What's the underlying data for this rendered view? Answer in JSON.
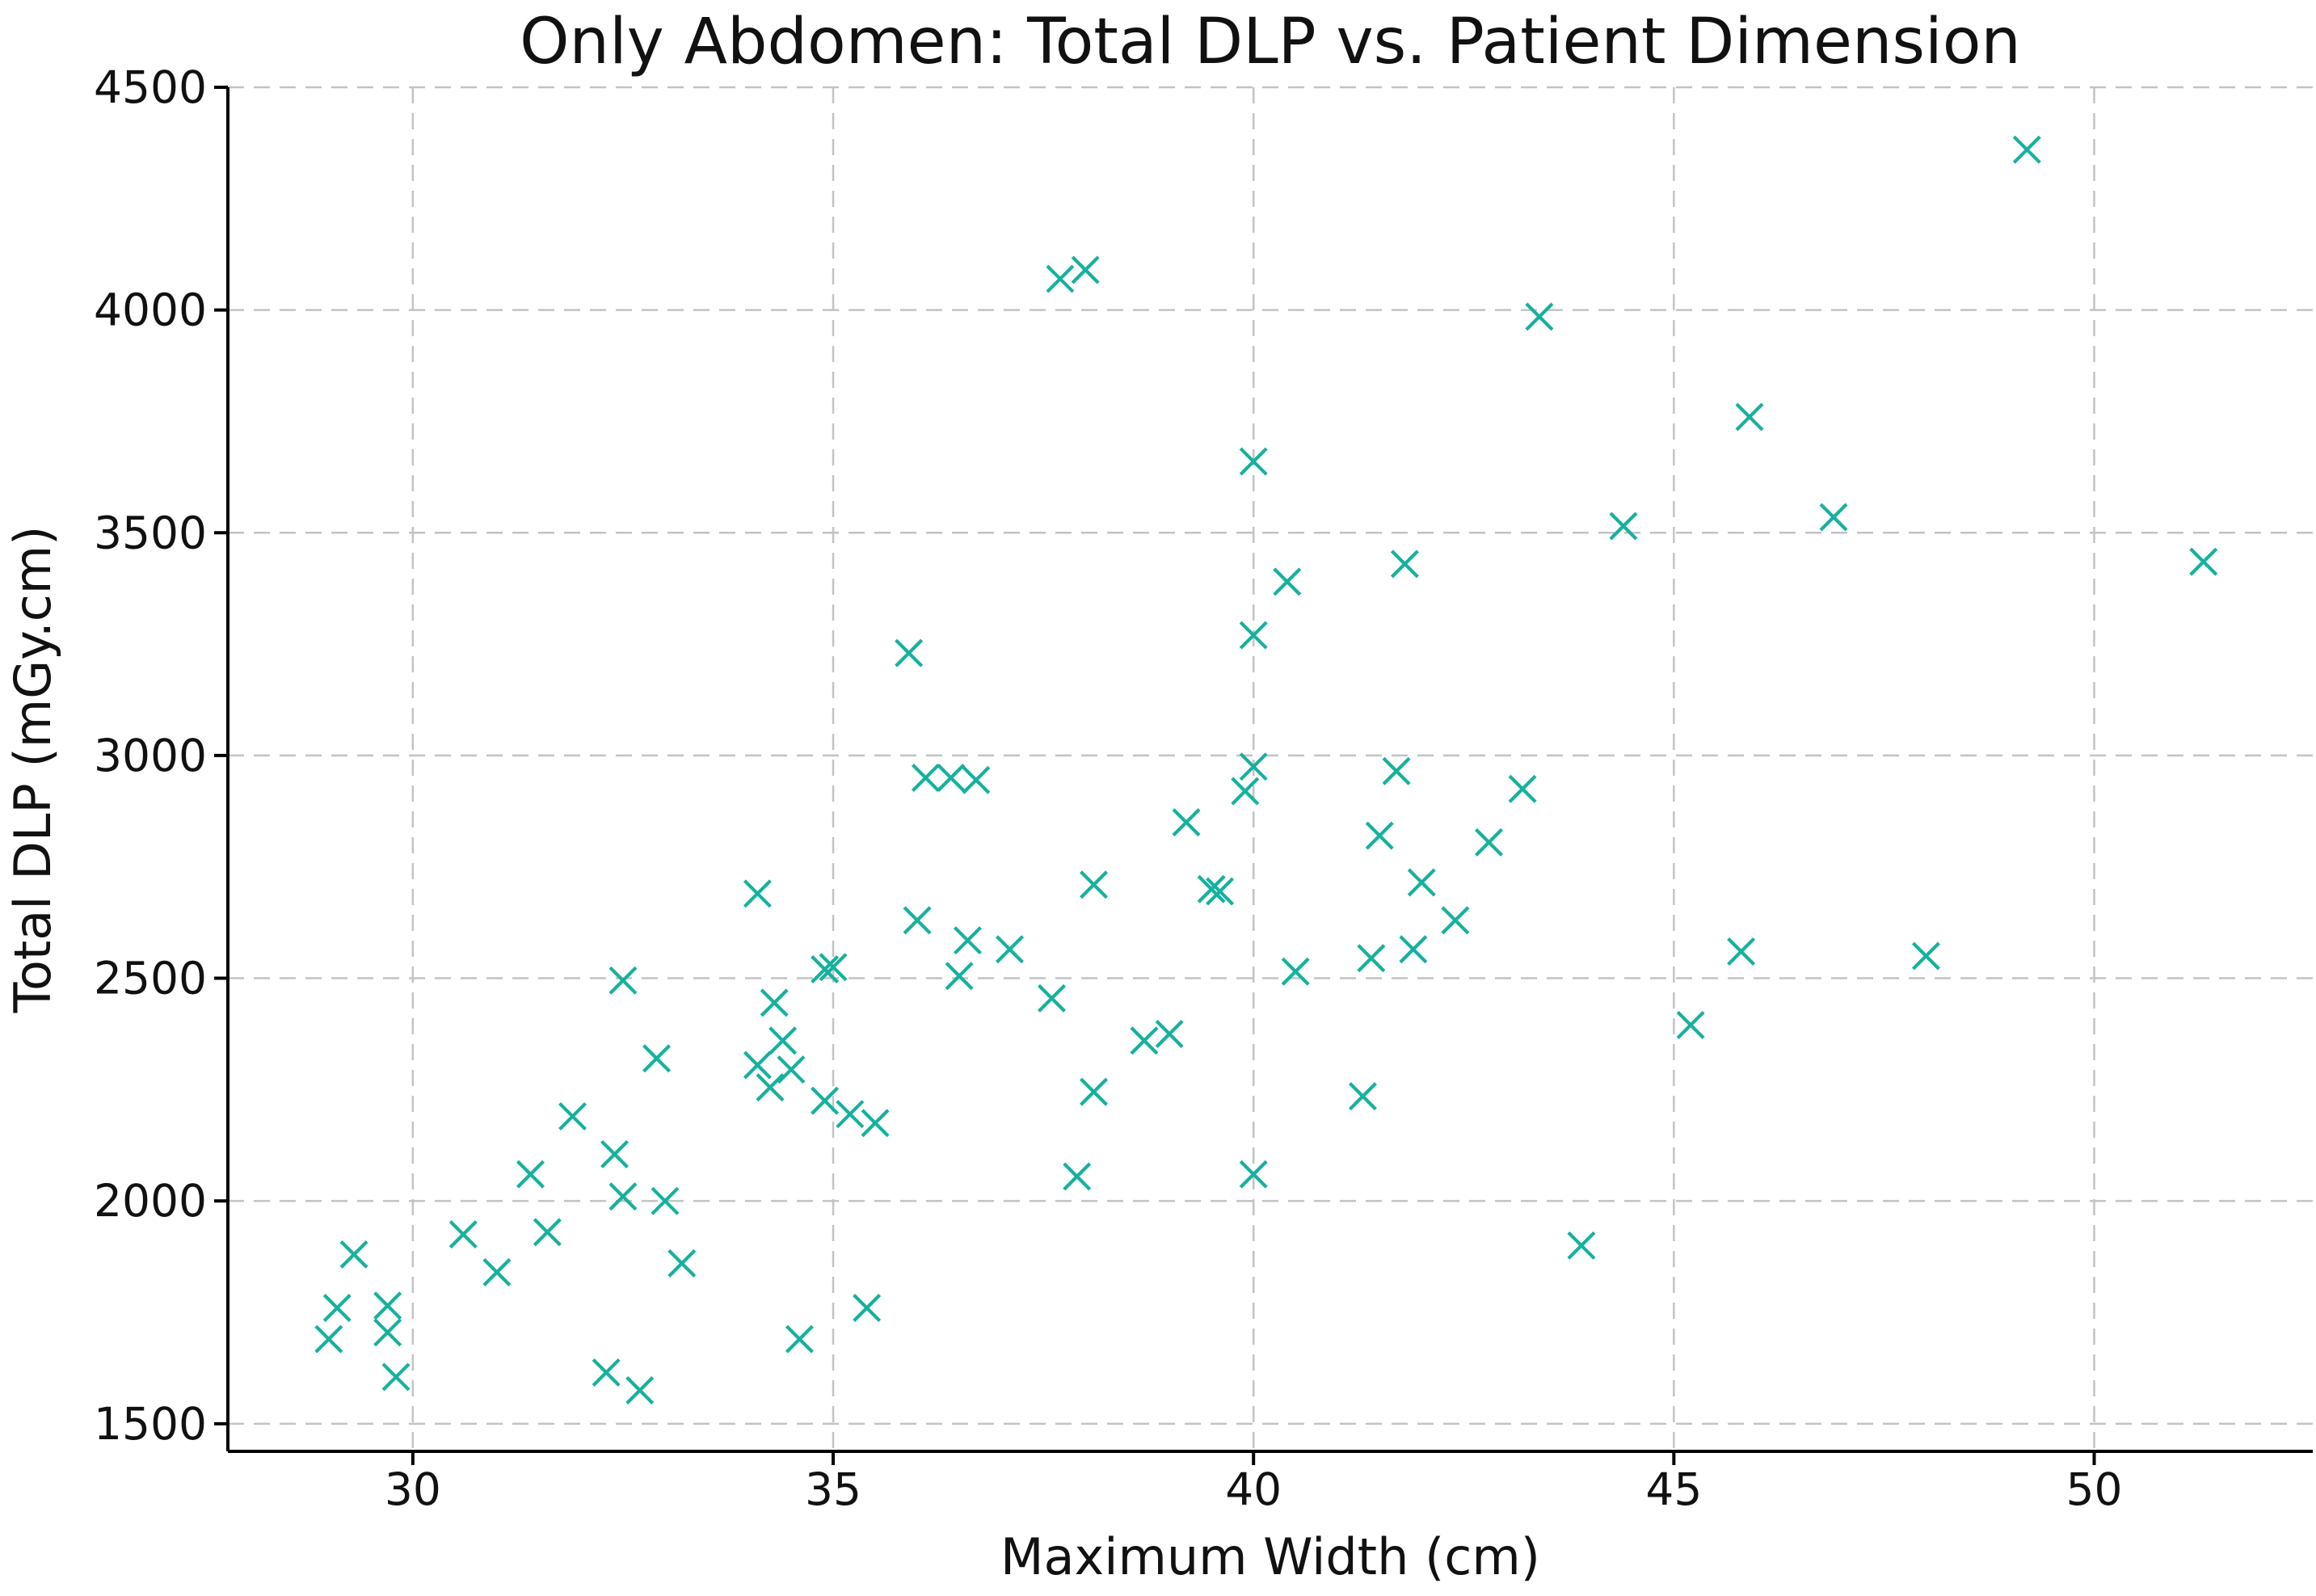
{
  "figure": {
    "title": "Only Abdomen: Total DLP vs. Patient Dimension",
    "xlabel": "Maximum Width (cm)",
    "ylabel": "Total DLP (mGy.cm)"
  },
  "chart_data": {
    "type": "scatter",
    "title": "Only Abdomen: Total DLP vs. Patient Dimension",
    "xlabel": "Maximum Width (cm)",
    "ylabel": "Total DLP (mGy.cm)",
    "marker": "x",
    "marker_color": "#16b19e",
    "grid": true,
    "grid_style": "dashed",
    "grid_color": "#c3c3c3",
    "spine_color": "#000000",
    "legend_position": "none",
    "xlim": [
      27.8,
      52.6
    ],
    "ylim": [
      1438,
      4500
    ],
    "xticks": [
      30,
      35,
      40,
      45,
      50
    ],
    "yticks": [
      1500,
      2000,
      2500,
      3000,
      3500,
      4000,
      4500
    ],
    "points": [
      [
        35.9,
        3230
      ],
      [
        37.7,
        4070
      ],
      [
        38.0,
        4090
      ],
      [
        43.4,
        3985
      ],
      [
        40.0,
        3660
      ],
      [
        44.4,
        3515
      ],
      [
        41.8,
        3430
      ],
      [
        40.4,
        3390
      ],
      [
        40.0,
        3270
      ],
      [
        41.7,
        2965
      ],
      [
        49.2,
        4360
      ],
      [
        45.9,
        3760
      ],
      [
        46.9,
        3535
      ],
      [
        51.3,
        3435
      ],
      [
        40.0,
        2975
      ],
      [
        39.9,
        2920
      ],
      [
        39.2,
        2850
      ],
      [
        38.1,
        2710
      ],
      [
        39.5,
        2700
      ],
      [
        39.6,
        2695
      ],
      [
        36.6,
        2585
      ],
      [
        37.1,
        2565
      ],
      [
        36.5,
        2505
      ],
      [
        37.6,
        2455
      ],
      [
        38.7,
        2360
      ],
      [
        39.0,
        2375
      ],
      [
        38.1,
        2245
      ],
      [
        41.3,
        2235
      ],
      [
        37.9,
        2055
      ],
      [
        40.0,
        2060
      ],
      [
        40.5,
        2515
      ],
      [
        41.4,
        2545
      ],
      [
        41.9,
        2565
      ],
      [
        42.4,
        2630
      ],
      [
        42.0,
        2715
      ],
      [
        41.5,
        2820
      ],
      [
        42.8,
        2805
      ],
      [
        43.2,
        2925
      ],
      [
        43.9,
        1900
      ],
      [
        36.1,
        2950
      ],
      [
        36.4,
        2950
      ],
      [
        36.7,
        2945
      ],
      [
        36.0,
        2630
      ],
      [
        32.5,
        2495
      ],
      [
        34.1,
        2690
      ],
      [
        34.9,
        2520
      ],
      [
        35.0,
        2525
      ],
      [
        34.3,
        2445
      ],
      [
        34.4,
        2360
      ],
      [
        34.1,
        2305
      ],
      [
        34.5,
        2295
      ],
      [
        34.25,
        2255
      ],
      [
        34.9,
        2225
      ],
      [
        35.2,
        2195
      ],
      [
        35.5,
        2175
      ],
      [
        32.9,
        2320
      ],
      [
        31.9,
        2190
      ],
      [
        32.4,
        2105
      ],
      [
        31.4,
        2060
      ],
      [
        32.5,
        2010
      ],
      [
        33.0,
        2000
      ],
      [
        30.6,
        1925
      ],
      [
        31.6,
        1930
      ],
      [
        31.0,
        1840
      ],
      [
        29.3,
        1880
      ],
      [
        29.1,
        1760
      ],
      [
        29.7,
        1765
      ],
      [
        29.0,
        1690
      ],
      [
        29.7,
        1705
      ],
      [
        29.8,
        1605
      ],
      [
        32.3,
        1615
      ],
      [
        32.7,
        1575
      ],
      [
        33.2,
        1860
      ],
      [
        34.6,
        1690
      ],
      [
        35.4,
        1760
      ],
      [
        45.8,
        2560
      ],
      [
        48.0,
        2550
      ],
      [
        45.2,
        2395
      ]
    ]
  }
}
